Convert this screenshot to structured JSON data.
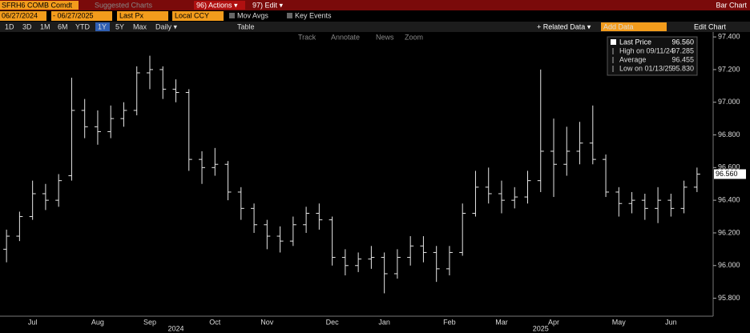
{
  "toolbar": {
    "row1": {
      "ticker": "SFRH6 COMB Comdt",
      "suggested": "Suggested Charts",
      "actions": "96) Actions ▾",
      "edit": "97) Edit ▾",
      "chart_kind": "Bar Chart"
    },
    "row2": {
      "start": "06/27/2024",
      "end": "- 06/27/2025",
      "field": "Last Px",
      "currency": "Local CCY",
      "mov_avgs": "Mov Avgs",
      "key_events": "Key Events"
    },
    "row3": {
      "periods": [
        "1D",
        "3D",
        "1M",
        "6M",
        "YTD",
        "1Y",
        "5Y",
        "Max"
      ],
      "frequency": "Daily ▾",
      "table": "Table",
      "related": "+ Related Data ▾",
      "add_data": "Add Data",
      "edit_chart": "Edit Chart"
    },
    "tools": [
      "Track",
      "Annotate",
      "News",
      "Zoom"
    ]
  },
  "chart_data": {
    "type": "ohlc",
    "color": "#e6e6e6",
    "categories": [
      null,
      null,
      "Jul",
      null,
      null,
      null,
      null,
      "Aug",
      null,
      null,
      null,
      "Sep",
      null,
      null,
      null,
      null,
      "Oct",
      null,
      null,
      null,
      "Nov",
      null,
      null,
      null,
      null,
      "Dec",
      null,
      null,
      null,
      "Jan",
      null,
      null,
      null,
      null,
      "Feb",
      null,
      null,
      null,
      "Mar",
      null,
      null,
      null,
      "Apr",
      null,
      null,
      null,
      null,
      "May",
      null,
      null,
      null,
      "Jun",
      null,
      null
    ],
    "year_categories": [
      null,
      null,
      null,
      null,
      null,
      null,
      null,
      null,
      null,
      null,
      null,
      null,
      null,
      "2024",
      null,
      null,
      null,
      null,
      null,
      null,
      null,
      null,
      null,
      null,
      null,
      null,
      null,
      null,
      null,
      null,
      null,
      null,
      null,
      null,
      null,
      null,
      null,
      null,
      null,
      null,
      null,
      "2025",
      null,
      null,
      null,
      null,
      null,
      null,
      null,
      null,
      null,
      null,
      null,
      null
    ],
    "open": [
      96.1,
      96.18,
      96.3,
      96.44,
      96.4,
      96.55,
      96.95,
      96.85,
      96.82,
      96.9,
      96.95,
      97.18,
      97.2,
      97.08,
      97.06,
      96.65,
      96.6,
      96.62,
      96.45,
      96.35,
      96.25,
      96.18,
      96.15,
      96.25,
      96.32,
      96.28,
      96.05,
      96.0,
      96.04,
      96.05,
      95.95,
      96.05,
      96.12,
      96.08,
      95.98,
      96.08,
      96.32,
      96.48,
      96.44,
      96.4,
      96.42,
      96.52,
      96.7,
      96.62,
      96.7,
      96.75,
      96.65,
      96.45,
      96.38,
      96.4,
      96.35,
      96.4,
      96.35,
      96.48
    ],
    "high": [
      96.22,
      96.33,
      96.52,
      96.5,
      96.56,
      97.15,
      97.02,
      96.95,
      96.98,
      97.0,
      97.22,
      97.285,
      97.22,
      97.14,
      97.08,
      96.7,
      96.72,
      96.64,
      96.48,
      96.38,
      96.28,
      96.24,
      96.3,
      96.36,
      96.38,
      96.3,
      96.1,
      96.08,
      96.12,
      96.08,
      96.1,
      96.18,
      96.18,
      96.12,
      96.12,
      96.38,
      96.58,
      96.6,
      96.52,
      96.48,
      96.58,
      97.2,
      96.9,
      96.85,
      96.88,
      96.98,
      96.68,
      96.48,
      96.45,
      96.44,
      96.48,
      96.44,
      96.52,
      96.6
    ],
    "low": [
      96.02,
      96.15,
      96.28,
      96.34,
      96.36,
      96.52,
      96.78,
      96.74,
      96.78,
      96.85,
      96.92,
      97.08,
      97.02,
      97.0,
      96.58,
      96.5,
      96.55,
      96.4,
      96.28,
      96.2,
      96.1,
      96.08,
      96.12,
      96.2,
      96.22,
      96.0,
      95.94,
      95.96,
      95.98,
      95.83,
      95.92,
      96.0,
      96.02,
      95.9,
      95.94,
      96.06,
      96.3,
      96.38,
      96.32,
      96.35,
      96.38,
      96.45,
      96.42,
      96.55,
      96.62,
      96.62,
      96.42,
      96.3,
      96.32,
      96.28,
      96.26,
      96.3,
      96.32,
      96.45
    ],
    "close": [
      96.18,
      96.3,
      96.44,
      96.4,
      96.52,
      96.95,
      96.85,
      96.82,
      96.9,
      96.95,
      97.18,
      97.2,
      97.08,
      97.06,
      96.65,
      96.6,
      96.62,
      96.45,
      96.35,
      96.25,
      96.18,
      96.15,
      96.25,
      96.32,
      96.28,
      96.05,
      96.0,
      96.04,
      96.05,
      95.95,
      96.05,
      96.12,
      96.08,
      95.98,
      96.08,
      96.32,
      96.48,
      96.44,
      96.4,
      96.42,
      96.52,
      96.7,
      96.62,
      96.7,
      96.75,
      96.65,
      96.45,
      96.38,
      96.4,
      96.35,
      96.4,
      96.35,
      96.48,
      96.56
    ],
    "ylim": [
      95.69,
      97.43
    ],
    "yticks": [
      {
        "value": 95.8,
        "label": "95.800"
      },
      {
        "value": 96.0,
        "label": "96.000"
      },
      {
        "value": 96.2,
        "label": "96.200"
      },
      {
        "value": 96.4,
        "label": "96.400"
      },
      {
        "value": 96.6,
        "label": "96.600"
      },
      {
        "value": 96.8,
        "label": "96.800"
      },
      {
        "value": 97.0,
        "label": "97.000"
      },
      {
        "value": 97.2,
        "label": "97.200"
      },
      {
        "value": 97.4,
        "label": "97.400"
      }
    ],
    "grid": false,
    "stats": {
      "names": [
        "Last Price",
        "High on 09/11/24",
        "Average",
        "Low on 01/13/25"
      ],
      "values": [
        96.56,
        97.285,
        96.455,
        95.83
      ],
      "value_labels": [
        "96.560",
        "97.285",
        "96.455",
        "95.830"
      ]
    }
  }
}
